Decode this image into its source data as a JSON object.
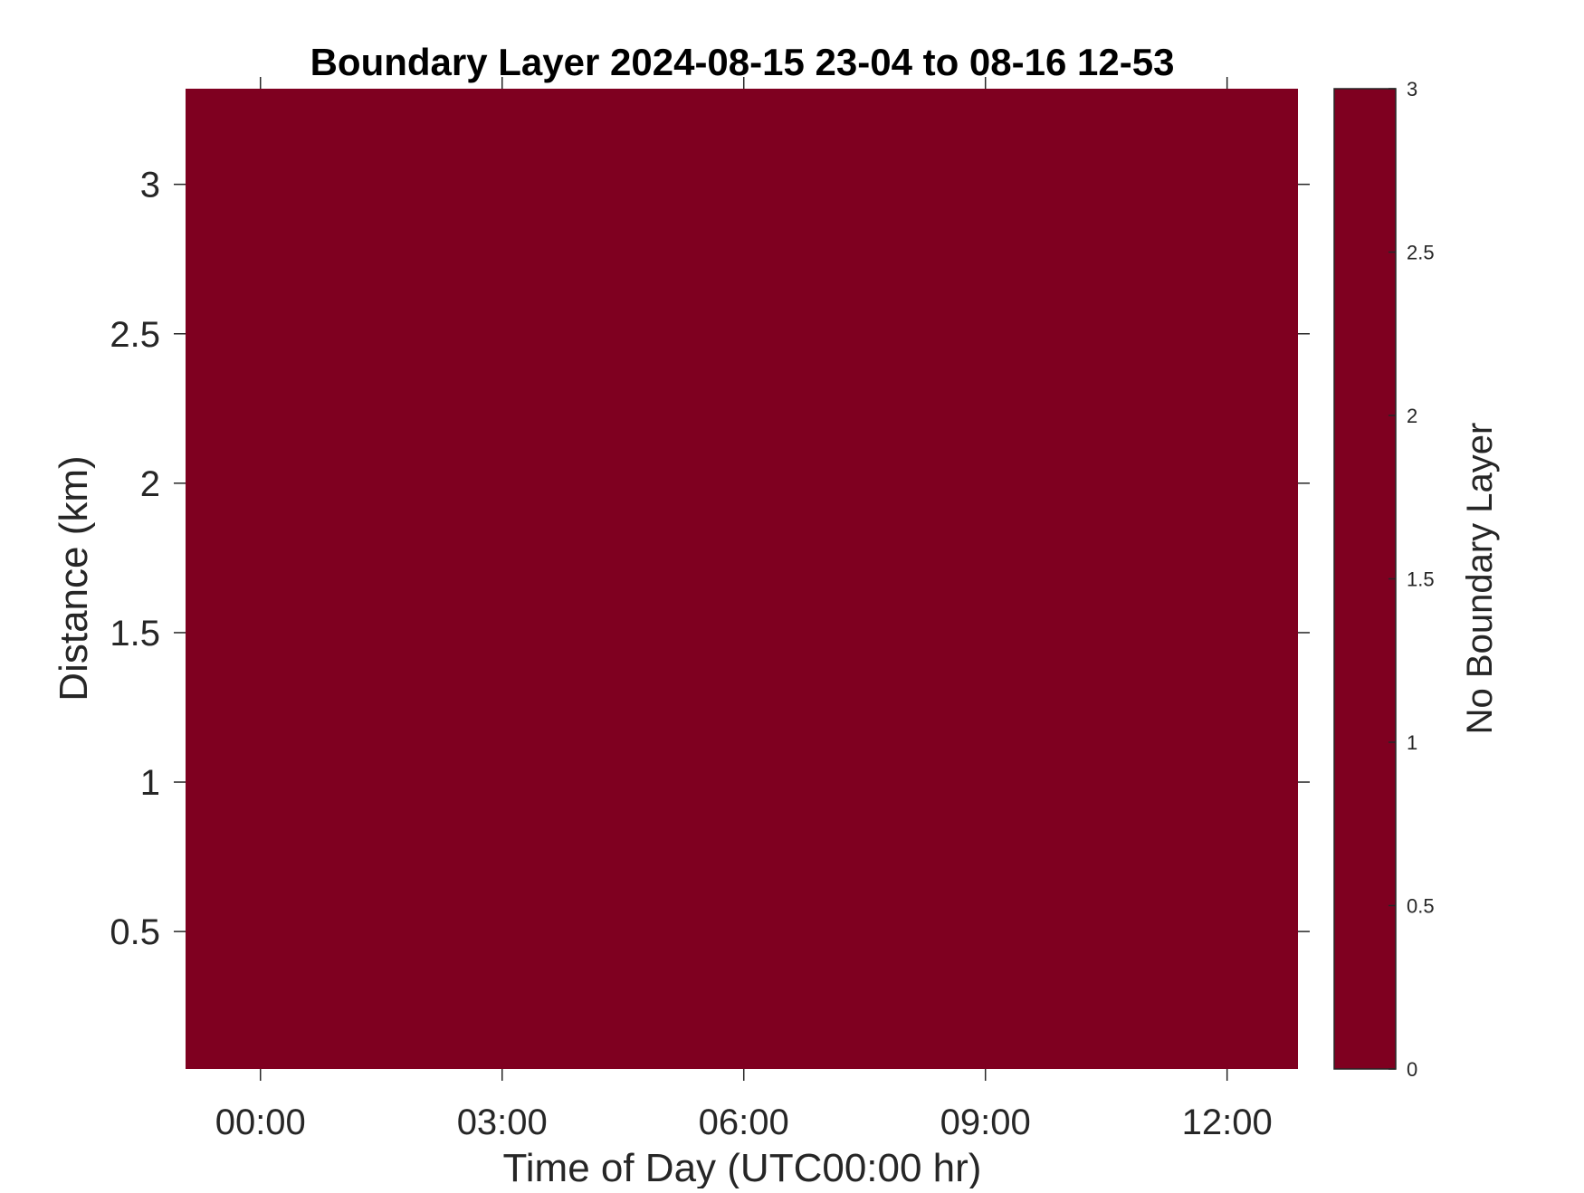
{
  "chart_data": {
    "type": "heatmap",
    "title": "Boundary Layer 2024-08-15 23-04 to 08-16 12-53",
    "xlabel": "Time of Day (UTC00:00 hr)",
    "ylabel": "Distance (km)",
    "xlim_hours": [
      -0.93,
      12.88
    ],
    "x_ticks": [
      {
        "value": 0,
        "label": "00:00"
      },
      {
        "value": 3,
        "label": "03:00"
      },
      {
        "value": 6,
        "label": "06:00"
      },
      {
        "value": 9,
        "label": "09:00"
      },
      {
        "value": 12,
        "label": "12:00"
      }
    ],
    "ylim": [
      0.04,
      3.32
    ],
    "y_ticks": [
      {
        "value": 0.5,
        "label": "0.5"
      },
      {
        "value": 1,
        "label": "1"
      },
      {
        "value": 1.5,
        "label": "1.5"
      },
      {
        "value": 2,
        "label": "2"
      },
      {
        "value": 2.5,
        "label": "2.5"
      },
      {
        "value": 3,
        "label": "3"
      }
    ],
    "field_value": 3,
    "field_color": "#7f0020",
    "grid": false,
    "colorbar": {
      "label": "No Boundary Layer",
      "range": [
        0,
        3
      ],
      "ticks": [
        {
          "value": 0,
          "label": "0"
        },
        {
          "value": 0.5,
          "label": "0.5"
        },
        {
          "value": 1,
          "label": "1"
        },
        {
          "value": 1.5,
          "label": "1.5"
        },
        {
          "value": 2,
          "label": "2"
        },
        {
          "value": 2.5,
          "label": "2.5"
        },
        {
          "value": 3,
          "label": "3"
        }
      ],
      "color": "#7f0020",
      "placement": "right"
    }
  }
}
